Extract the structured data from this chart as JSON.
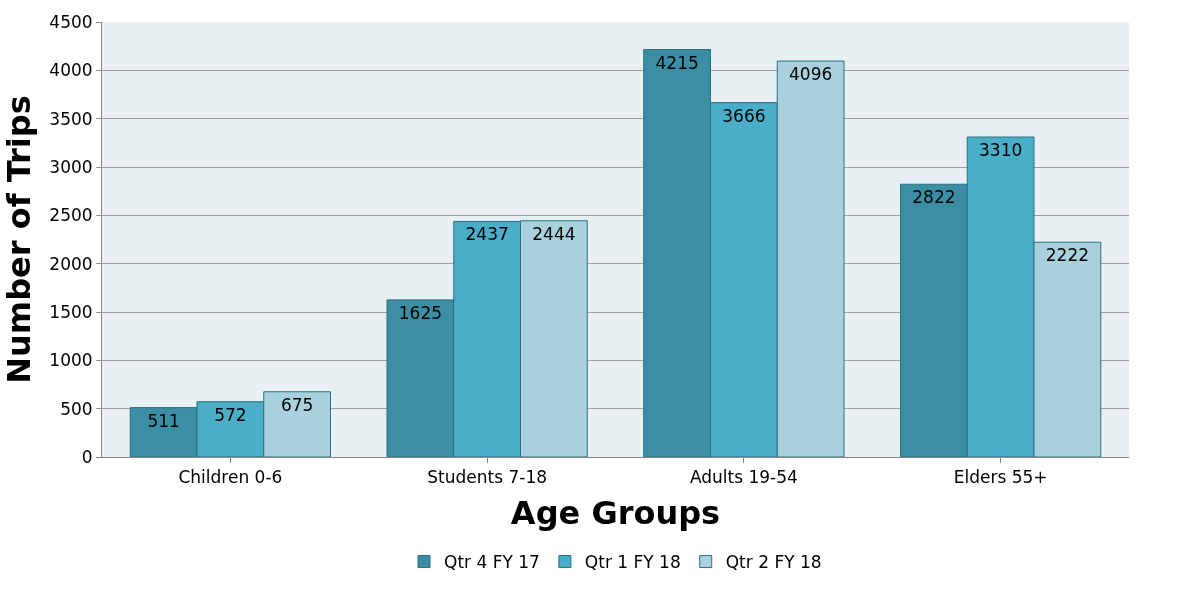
{
  "chart_data": {
    "type": "bar",
    "xlabel": "Age Groups",
    "ylabel": "Number of Trips",
    "categories": [
      "Children 0-6",
      "Students 7-18",
      "Adults 19-54",
      "Elders 55+"
    ],
    "series": [
      {
        "name": "Qtr 4 FY 17",
        "color": "#3b8ea3",
        "values": [
          511,
          1625,
          4215,
          2822
        ]
      },
      {
        "name": "Qtr 1 FY 18",
        "color": "#4aaec8",
        "values": [
          572,
          2437,
          3666,
          3310
        ]
      },
      {
        "name": "Qtr 2 FY 18",
        "color": "#a9d0dd",
        "values": [
          675,
          2444,
          4096,
          2222
        ]
      }
    ],
    "ylim": [
      0,
      4500
    ],
    "yticks": [
      0,
      500,
      1000,
      1500,
      2000,
      2500,
      3000,
      3500,
      4000,
      4500
    ],
    "grid": "y",
    "legend": "bottom",
    "data_labels": true
  }
}
